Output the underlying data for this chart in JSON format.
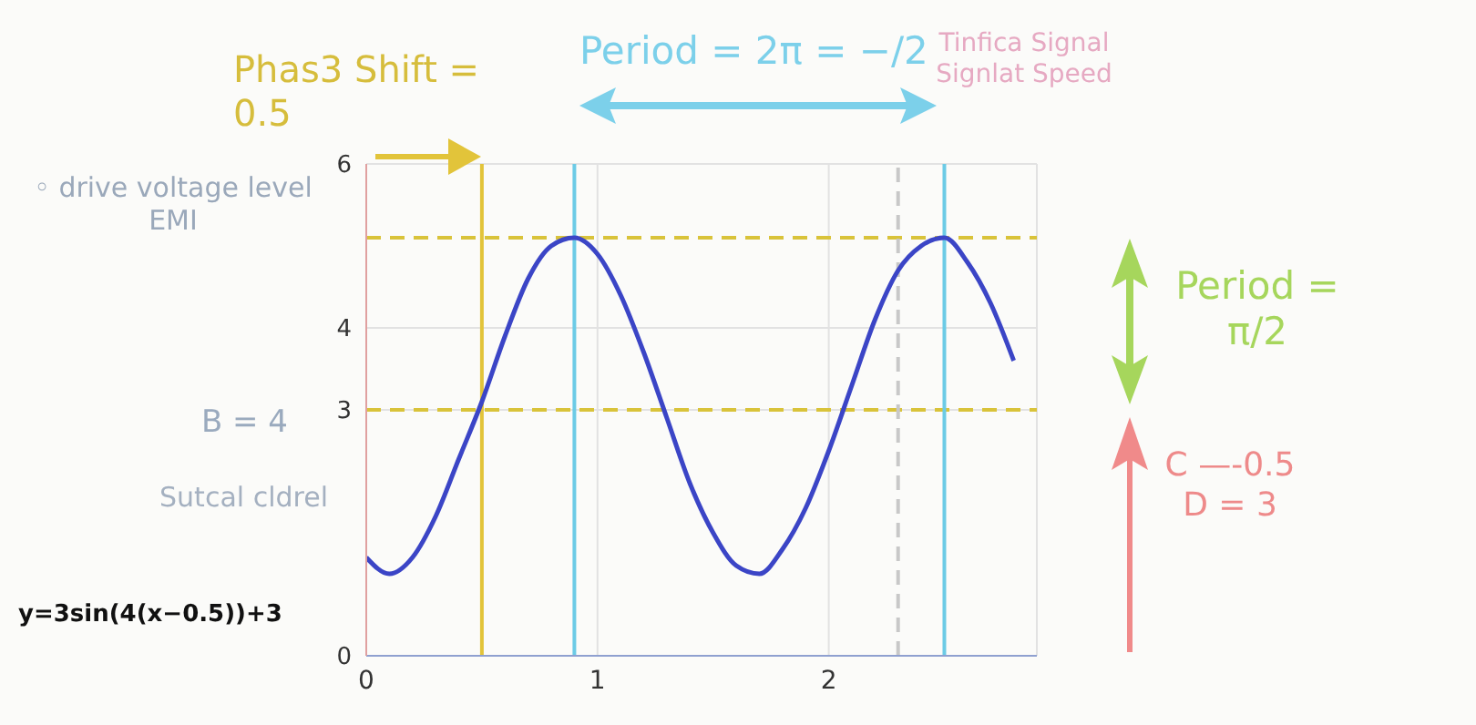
{
  "chart_data": {
    "type": "line",
    "x": [
      0,
      0.1,
      0.2,
      0.3,
      0.4,
      0.5,
      0.6,
      0.7,
      0.8,
      0.9,
      1.0,
      1.1,
      1.2,
      1.3,
      1.4,
      1.5,
      1.6,
      1.7,
      1.8,
      1.9,
      2.0,
      2.1,
      2.2,
      2.3,
      2.4,
      2.5,
      2.6,
      2.7,
      2.8
    ],
    "series": [
      {
        "color": "#3b45c6",
        "values": [
          1.2,
          1.0,
          1.2,
          1.7,
          2.4,
          3.1,
          3.9,
          4.6,
          5.0,
          5.1,
          4.9,
          4.4,
          3.7,
          2.9,
          2.1,
          1.5,
          1.1,
          1.0,
          1.3,
          1.8,
          2.5,
          3.3,
          4.1,
          4.7,
          5.0,
          5.1,
          4.8,
          4.3,
          3.6
        ]
      }
    ],
    "xlim": [
      0,
      2.9
    ],
    "xticks": [
      0,
      1,
      2
    ],
    "ylim": [
      0,
      6
    ],
    "yticks": [
      0,
      3,
      4,
      6
    ],
    "grid": true,
    "marker": "none",
    "line_style": "solid",
    "ref_lines": [
      {
        "axis": "y",
        "value": 3,
        "color": "#d9c33a",
        "line_style": "dashed"
      },
      {
        "axis": "y",
        "value": 5.1,
        "color": "#d9c33a",
        "line_style": "dashed"
      },
      {
        "axis": "x",
        "value": 0.5,
        "color": "#e2c43a",
        "line_style": "solid"
      },
      {
        "axis": "x",
        "value": 0.9,
        "color": "#6ccbe6",
        "line_style": "solid"
      },
      {
        "axis": "x",
        "value": 2.5,
        "color": "#6ccbe6",
        "line_style": "solid"
      },
      {
        "axis": "x",
        "value": 2.3,
        "color": "#c8c8c8",
        "line_style": "dashed"
      }
    ],
    "annotations": [
      "B = 4",
      "Phas3 Shift = 0.5",
      "Period = 2π = −/2",
      "Tinfica Signal Signlat Speed",
      "◦ drive voltage level EMI",
      "Sutcal cldrel",
      "y=3sin(4(x−0.5))+3",
      "Period = π/2",
      "C —-0.5 D = 3"
    ]
  }
}
